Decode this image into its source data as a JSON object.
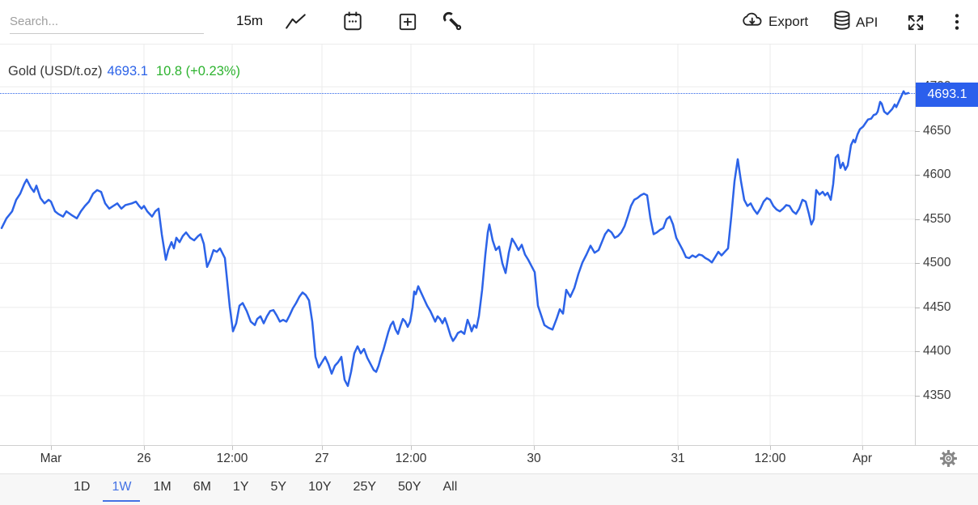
{
  "toolbar": {
    "search_placeholder": "Search...",
    "interval_label": "15m",
    "export_label": "Export",
    "api_label": "API"
  },
  "header": {
    "instrument": "Gold (USD/t.oz)",
    "price": "4693.1",
    "change_text": "10.8 (+0.23%)"
  },
  "price_badge": "4693.1",
  "timebar": {
    "ranges": [
      "1D",
      "1W",
      "1M",
      "6M",
      "1Y",
      "5Y",
      "10Y",
      "25Y",
      "50Y",
      "All"
    ],
    "active": "1W"
  },
  "colors": {
    "accent_blue": "#2c63e8",
    "badge_bg": "#2b5fec",
    "change_green": "#2db32f",
    "grid": "#ebebeb",
    "active_tab": "#4472e4"
  },
  "chart_data": {
    "type": "line",
    "title": "Gold (USD/t.oz)",
    "xlabel": "",
    "ylabel": "",
    "last_price": 4693.1,
    "change": 10.8,
    "change_pct": "+0.23%",
    "line_color": "#2c63e8",
    "grid": true,
    "legend": false,
    "ylim": [
      4294,
      4748
    ],
    "y_ticks": [
      4350,
      4400,
      4450,
      4500,
      4550,
      4600,
      4650,
      4700
    ],
    "x_range": [
      0,
      1131
    ],
    "x_ticks": [
      {
        "label": "Mar",
        "x": 63
      },
      {
        "label": "26",
        "x": 178
      },
      {
        "label": "12:00",
        "x": 287
      },
      {
        "label": "27",
        "x": 398
      },
      {
        "label": "12:00",
        "x": 508
      },
      {
        "label": "30",
        "x": 660
      },
      {
        "label": "31",
        "x": 838
      },
      {
        "label": "12:00",
        "x": 952
      },
      {
        "label": "Apr",
        "x": 1066
      }
    ],
    "series": [
      [
        2,
        4540
      ],
      [
        8,
        4551
      ],
      [
        15,
        4559
      ],
      [
        20,
        4572
      ],
      [
        25,
        4579
      ],
      [
        30,
        4590
      ],
      [
        33,
        4595
      ],
      [
        38,
        4586
      ],
      [
        42,
        4581
      ],
      [
        45,
        4588
      ],
      [
        50,
        4574
      ],
      [
        55,
        4568
      ],
      [
        60,
        4572
      ],
      [
        63,
        4570
      ],
      [
        68,
        4559
      ],
      [
        72,
        4556
      ],
      [
        78,
        4553
      ],
      [
        82,
        4559
      ],
      [
        88,
        4555
      ],
      [
        95,
        4551
      ],
      [
        100,
        4559
      ],
      [
        105,
        4565
      ],
      [
        110,
        4570
      ],
      [
        115,
        4579
      ],
      [
        120,
        4583
      ],
      [
        125,
        4581
      ],
      [
        130,
        4568
      ],
      [
        135,
        4562
      ],
      [
        140,
        4565
      ],
      [
        145,
        4568
      ],
      [
        150,
        4562
      ],
      [
        155,
        4566
      ],
      [
        163,
        4568
      ],
      [
        168,
        4570
      ],
      [
        172,
        4565
      ],
      [
        175,
        4562
      ],
      [
        178,
        4565
      ],
      [
        182,
        4559
      ],
      [
        188,
        4553
      ],
      [
        192,
        4559
      ],
      [
        196,
        4562
      ],
      [
        200,
        4533
      ],
      [
        205,
        4504
      ],
      [
        208,
        4515
      ],
      [
        212,
        4524
      ],
      [
        215,
        4517
      ],
      [
        218,
        4529
      ],
      [
        222,
        4524
      ],
      [
        226,
        4531
      ],
      [
        230,
        4535
      ],
      [
        235,
        4529
      ],
      [
        240,
        4526
      ],
      [
        245,
        4531
      ],
      [
        248,
        4533
      ],
      [
        252,
        4522
      ],
      [
        256,
        4496
      ],
      [
        260,
        4504
      ],
      [
        264,
        4515
      ],
      [
        268,
        4513
      ],
      [
        272,
        4517
      ],
      [
        278,
        4506
      ],
      [
        284,
        4451
      ],
      [
        288,
        4423
      ],
      [
        292,
        4432
      ],
      [
        296,
        4452
      ],
      [
        300,
        4455
      ],
      [
        305,
        4446
      ],
      [
        310,
        4434
      ],
      [
        315,
        4430
      ],
      [
        318,
        4437
      ],
      [
        322,
        4440
      ],
      [
        326,
        4432
      ],
      [
        330,
        4440
      ],
      [
        334,
        4446
      ],
      [
        338,
        4447
      ],
      [
        342,
        4441
      ],
      [
        346,
        4434
      ],
      [
        350,
        4436
      ],
      [
        354,
        4434
      ],
      [
        358,
        4441
      ],
      [
        362,
        4449
      ],
      [
        366,
        4455
      ],
      [
        370,
        4462
      ],
      [
        374,
        4467
      ],
      [
        378,
        4464
      ],
      [
        382,
        4458
      ],
      [
        386,
        4434
      ],
      [
        390,
        4394
      ],
      [
        394,
        4382
      ],
      [
        398,
        4388
      ],
      [
        402,
        4394
      ],
      [
        406,
        4386
      ],
      [
        410,
        4375
      ],
      [
        414,
        4384
      ],
      [
        418,
        4388
      ],
      [
        422,
        4394
      ],
      [
        426,
        4368
      ],
      [
        430,
        4361
      ],
      [
        434,
        4377
      ],
      [
        438,
        4398
      ],
      [
        442,
        4406
      ],
      [
        446,
        4398
      ],
      [
        450,
        4403
      ],
      [
        454,
        4393
      ],
      [
        458,
        4386
      ],
      [
        462,
        4379
      ],
      [
        465,
        4377
      ],
      [
        468,
        4384
      ],
      [
        471,
        4394
      ],
      [
        474,
        4402
      ],
      [
        477,
        4412
      ],
      [
        480,
        4422
      ],
      [
        483,
        4430
      ],
      [
        486,
        4434
      ],
      [
        489,
        4425
      ],
      [
        492,
        4420
      ],
      [
        495,
        4429
      ],
      [
        498,
        4437
      ],
      [
        501,
        4434
      ],
      [
        504,
        4428
      ],
      [
        507,
        4434
      ],
      [
        510,
        4450
      ],
      [
        512,
        4468
      ],
      [
        514,
        4465
      ],
      [
        517,
        4474
      ],
      [
        520,
        4468
      ],
      [
        524,
        4460
      ],
      [
        528,
        4452
      ],
      [
        532,
        4446
      ],
      [
        535,
        4440
      ],
      [
        538,
        4434
      ],
      [
        541,
        4440
      ],
      [
        544,
        4437
      ],
      [
        547,
        4432
      ],
      [
        550,
        4438
      ],
      [
        553,
        4430
      ],
      [
        557,
        4418
      ],
      [
        560,
        4412
      ],
      [
        563,
        4416
      ],
      [
        566,
        4421
      ],
      [
        570,
        4423
      ],
      [
        574,
        4420
      ],
      [
        578,
        4436
      ],
      [
        581,
        4429
      ],
      [
        583,
        4423
      ],
      [
        586,
        4430
      ],
      [
        589,
        4427
      ],
      [
        592,
        4440
      ],
      [
        596,
        4470
      ],
      [
        600,
        4510
      ],
      [
        603,
        4535
      ],
      [
        605,
        4544
      ],
      [
        609,
        4526
      ],
      [
        613,
        4515
      ],
      [
        617,
        4519
      ],
      [
        621,
        4500
      ],
      [
        625,
        4489
      ],
      [
        629,
        4512
      ],
      [
        633,
        4528
      ],
      [
        637,
        4522
      ],
      [
        641,
        4515
      ],
      [
        645,
        4521
      ],
      [
        649,
        4510
      ],
      [
        653,
        4504
      ],
      [
        657,
        4497
      ],
      [
        661,
        4490
      ],
      [
        665,
        4452
      ],
      [
        669,
        4441
      ],
      [
        673,
        4430
      ],
      [
        678,
        4427
      ],
      [
        683,
        4425
      ],
      [
        688,
        4437
      ],
      [
        692,
        4448
      ],
      [
        696,
        4443
      ],
      [
        700,
        4470
      ],
      [
        705,
        4462
      ],
      [
        710,
        4472
      ],
      [
        715,
        4488
      ],
      [
        720,
        4501
      ],
      [
        725,
        4510
      ],
      [
        730,
        4520
      ],
      [
        735,
        4512
      ],
      [
        740,
        4515
      ],
      [
        744,
        4524
      ],
      [
        748,
        4533
      ],
      [
        752,
        4538
      ],
      [
        756,
        4535
      ],
      [
        760,
        4529
      ],
      [
        764,
        4531
      ],
      [
        768,
        4535
      ],
      [
        772,
        4542
      ],
      [
        776,
        4553
      ],
      [
        780,
        4565
      ],
      [
        784,
        4572
      ],
      [
        788,
        4574
      ],
      [
        792,
        4577
      ],
      [
        796,
        4579
      ],
      [
        800,
        4577
      ],
      [
        804,
        4551
      ],
      [
        808,
        4533
      ],
      [
        812,
        4535
      ],
      [
        816,
        4538
      ],
      [
        820,
        4540
      ],
      [
        824,
        4550
      ],
      [
        828,
        4553
      ],
      [
        832,
        4544
      ],
      [
        836,
        4529
      ],
      [
        840,
        4522
      ],
      [
        844,
        4515
      ],
      [
        848,
        4507
      ],
      [
        852,
        4506
      ],
      [
        856,
        4509
      ],
      [
        860,
        4507
      ],
      [
        864,
        4510
      ],
      [
        868,
        4509
      ],
      [
        872,
        4506
      ],
      [
        876,
        4504
      ],
      [
        880,
        4501
      ],
      [
        884,
        4507
      ],
      [
        888,
        4513
      ],
      [
        892,
        4509
      ],
      [
        896,
        4513
      ],
      [
        900,
        4517
      ],
      [
        904,
        4553
      ],
      [
        908,
        4593
      ],
      [
        912,
        4618
      ],
      [
        916,
        4593
      ],
      [
        920,
        4572
      ],
      [
        924,
        4565
      ],
      [
        928,
        4568
      ],
      [
        932,
        4561
      ],
      [
        936,
        4556
      ],
      [
        940,
        4562
      ],
      [
        944,
        4570
      ],
      [
        948,
        4574
      ],
      [
        952,
        4572
      ],
      [
        956,
        4565
      ],
      [
        960,
        4561
      ],
      [
        964,
        4559
      ],
      [
        968,
        4562
      ],
      [
        972,
        4566
      ],
      [
        976,
        4565
      ],
      [
        980,
        4559
      ],
      [
        984,
        4556
      ],
      [
        988,
        4562
      ],
      [
        992,
        4572
      ],
      [
        996,
        4570
      ],
      [
        1000,
        4556
      ],
      [
        1003,
        4544
      ],
      [
        1006,
        4550
      ],
      [
        1009,
        4583
      ],
      [
        1013,
        4578
      ],
      [
        1017,
        4581
      ],
      [
        1020,
        4577
      ],
      [
        1023,
        4580
      ],
      [
        1027,
        4572
      ],
      [
        1030,
        4590
      ],
      [
        1033,
        4620
      ],
      [
        1036,
        4623
      ],
      [
        1039,
        4608
      ],
      [
        1042,
        4614
      ],
      [
        1045,
        4606
      ],
      [
        1048,
        4611
      ],
      [
        1052,
        4634
      ],
      [
        1055,
        4640
      ],
      [
        1057,
        4637
      ],
      [
        1060,
        4646
      ],
      [
        1063,
        4652
      ],
      [
        1067,
        4655
      ],
      [
        1070,
        4659
      ],
      [
        1073,
        4663
      ],
      [
        1077,
        4664
      ],
      [
        1080,
        4668
      ],
      [
        1083,
        4669
      ],
      [
        1085,
        4672
      ],
      [
        1088,
        4683
      ],
      [
        1090,
        4681
      ],
      [
        1093,
        4672
      ],
      [
        1097,
        4669
      ],
      [
        1100,
        4672
      ],
      [
        1103,
        4675
      ],
      [
        1106,
        4680
      ],
      [
        1108,
        4677
      ],
      [
        1111,
        4683
      ],
      [
        1114,
        4689
      ],
      [
        1117,
        4695
      ],
      [
        1119,
        4692
      ],
      [
        1123,
        4693.1
      ]
    ]
  }
}
